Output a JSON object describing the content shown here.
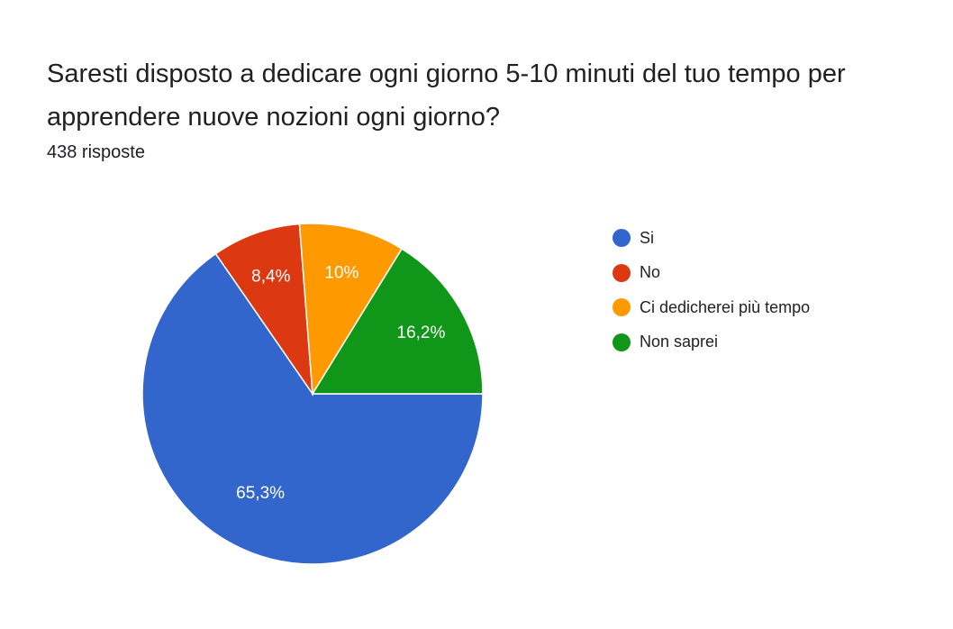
{
  "title": "Saresti disposto a dedicare ogni giorno 5-10 minuti del tuo tempo per apprendere nuove nozioni ogni giorno?",
  "subtitle": "438 risposte",
  "chart_data": {
    "type": "pie",
    "title": "Saresti disposto a dedicare ogni giorno 5-10 minuti del tuo tempo per apprendere nuove nozioni ogni giorno?",
    "subtitle": "438 risposte",
    "categories": [
      "Si",
      "No",
      "Ci dedicherei più tempo",
      "Non saprei"
    ],
    "values": [
      65.3,
      8.4,
      10,
      16.2
    ],
    "labels": [
      "65,3%",
      "8,4%",
      "10%",
      "16,2%"
    ],
    "colors": [
      "#3366cc",
      "#dc3912",
      "#ff9900",
      "#109618"
    ],
    "legend_position": "right"
  }
}
